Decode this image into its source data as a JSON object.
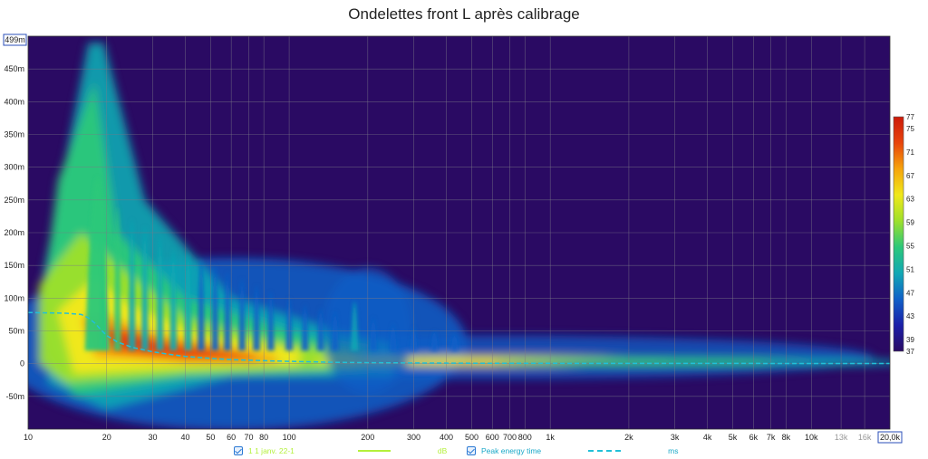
{
  "title": "Ondelettes front L après calibrage",
  "chart_data": {
    "type": "heatmap",
    "title": "Ondelettes front L après calibrage",
    "x_scale": "log",
    "xlim": [
      10,
      20000
    ],
    "ylim": [
      -0.1,
      0.5
    ],
    "x_ticks": [
      {
        "v": 10,
        "t": "10"
      },
      {
        "v": 20,
        "t": "20"
      },
      {
        "v": 30,
        "t": "30"
      },
      {
        "v": 40,
        "t": "40"
      },
      {
        "v": 50,
        "t": "50"
      },
      {
        "v": 60,
        "t": "60"
      },
      {
        "v": 70,
        "t": "70"
      },
      {
        "v": 80,
        "t": "80"
      },
      {
        "v": 100,
        "t": "100"
      },
      {
        "v": 200,
        "t": "200"
      },
      {
        "v": 300,
        "t": "300"
      },
      {
        "v": 400,
        "t": "400"
      },
      {
        "v": 500,
        "t": "500"
      },
      {
        "v": 600,
        "t": "600"
      },
      {
        "v": 700,
        "t": "700"
      },
      {
        "v": 800,
        "t": "800"
      },
      {
        "v": 1000,
        "t": "1k"
      },
      {
        "v": 2000,
        "t": "2k"
      },
      {
        "v": 3000,
        "t": "3k"
      },
      {
        "v": 4000,
        "t": "4k"
      },
      {
        "v": 5000,
        "t": "5k"
      },
      {
        "v": 6000,
        "t": "6k"
      },
      {
        "v": 7000,
        "t": "7k"
      },
      {
        "v": 8000,
        "t": "8k"
      },
      {
        "v": 10000,
        "t": "10k"
      },
      {
        "v": 13000,
        "t": "13k"
      },
      {
        "v": 16000,
        "t": "16k"
      }
    ],
    "x_end_label": "20,0k",
    "y_ticks": [
      {
        "v": 0.45,
        "t": "450m"
      },
      {
        "v": 0.4,
        "t": "400m"
      },
      {
        "v": 0.35,
        "t": "350m"
      },
      {
        "v": 0.3,
        "t": "300m"
      },
      {
        "v": 0.25,
        "t": "250m"
      },
      {
        "v": 0.2,
        "t": "200m"
      },
      {
        "v": 0.15,
        "t": "150m"
      },
      {
        "v": 0.1,
        "t": "100m"
      },
      {
        "v": 0.05,
        "t": "50m"
      },
      {
        "v": 0,
        "t": "0"
      },
      {
        "v": -0.05,
        "t": "-50m"
      }
    ],
    "y_top_label": "499m",
    "colorbar": {
      "min": 37,
      "max": 77,
      "ticks": [
        77,
        75,
        71,
        67,
        63,
        59,
        55,
        51,
        47,
        43,
        39,
        37
      ],
      "colors": [
        "#2a0a63",
        "#1a1fa8",
        "#1060c8",
        "#12a8b4",
        "#2cc87a",
        "#9ee02a",
        "#f0e81a",
        "#f6a40c",
        "#e8440c",
        "#cc1a0a"
      ]
    },
    "series": [
      {
        "name": "Peak energy time",
        "type": "line",
        "color": "#22c0d8",
        "dash": true,
        "x": [
          10,
          14,
          16,
          17,
          18,
          19,
          20,
          22,
          25,
          30,
          35,
          40,
          50,
          60,
          80,
          100,
          150,
          200,
          300,
          500,
          1000,
          2000,
          5000,
          10000,
          20000
        ],
        "y": [
          0.078,
          0.077,
          0.075,
          0.07,
          0.062,
          0.052,
          0.043,
          0.033,
          0.025,
          0.018,
          0.014,
          0.011,
          0.008,
          0.006,
          0.0045,
          0.0035,
          0.002,
          0.0015,
          0.001,
          0.0007,
          0.0005,
          0.0004,
          0.0003,
          0.0002,
          0.0002
        ]
      }
    ]
  },
  "legend": [
    {
      "label": "1 1 janv. 22-1",
      "unit": "dB",
      "color": "#b4f03c"
    },
    {
      "label": "Peak energy time",
      "unit": "ms",
      "color": "#22c0d8"
    }
  ]
}
